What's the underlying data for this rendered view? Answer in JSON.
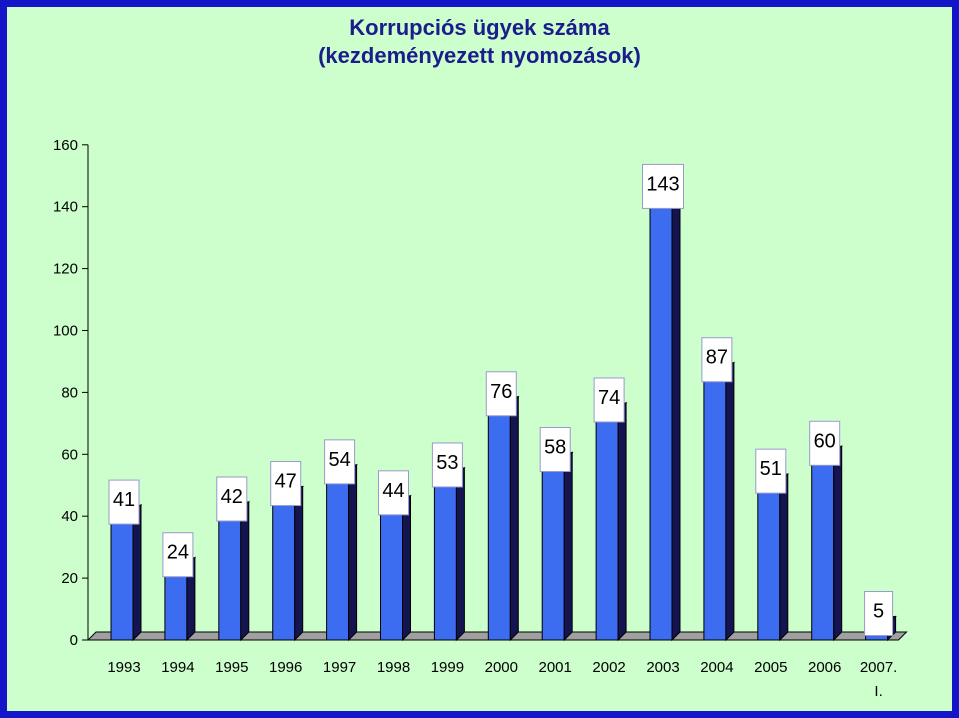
{
  "title_line1": "Korrupciós ügyek száma",
  "title_line2": "(kezdeményezett nyomozások)",
  "colors": {
    "background": "#ccffcc",
    "border": "#1414c8",
    "bar_front": "#3c6cf0",
    "bar_side": "#141450",
    "bar_top": "#1e2a8a",
    "label_box": "#ffffff",
    "label_box_border": "#9999cc"
  },
  "chart_data": {
    "type": "bar",
    "title": "Korrupciós ügyek száma (kezdeményezett nyomozások)",
    "categories": [
      "1993",
      "1994",
      "1995",
      "1996",
      "1997",
      "1998",
      "1999",
      "2000",
      "2001",
      "2002",
      "2003",
      "2004",
      "2005",
      "2006",
      "2007. I."
    ],
    "category_lines": [
      [
        "1993"
      ],
      [
        "1994"
      ],
      [
        "1995"
      ],
      [
        "1996"
      ],
      [
        "1997"
      ],
      [
        "1998"
      ],
      [
        "1999"
      ],
      [
        "2000"
      ],
      [
        "2001"
      ],
      [
        "2002"
      ],
      [
        "2003"
      ],
      [
        "2004"
      ],
      [
        "2005"
      ],
      [
        "2006"
      ],
      [
        "2007.",
        "I."
      ]
    ],
    "values": [
      41,
      24,
      42,
      47,
      54,
      44,
      53,
      76,
      58,
      74,
      143,
      87,
      51,
      60,
      5
    ],
    "ylim": [
      0,
      160
    ],
    "yticks": [
      0,
      20,
      40,
      60,
      80,
      100,
      120,
      140,
      160
    ],
    "xlabel": "",
    "ylabel": "",
    "grid": false,
    "legend": "none",
    "style": "3d-column"
  }
}
